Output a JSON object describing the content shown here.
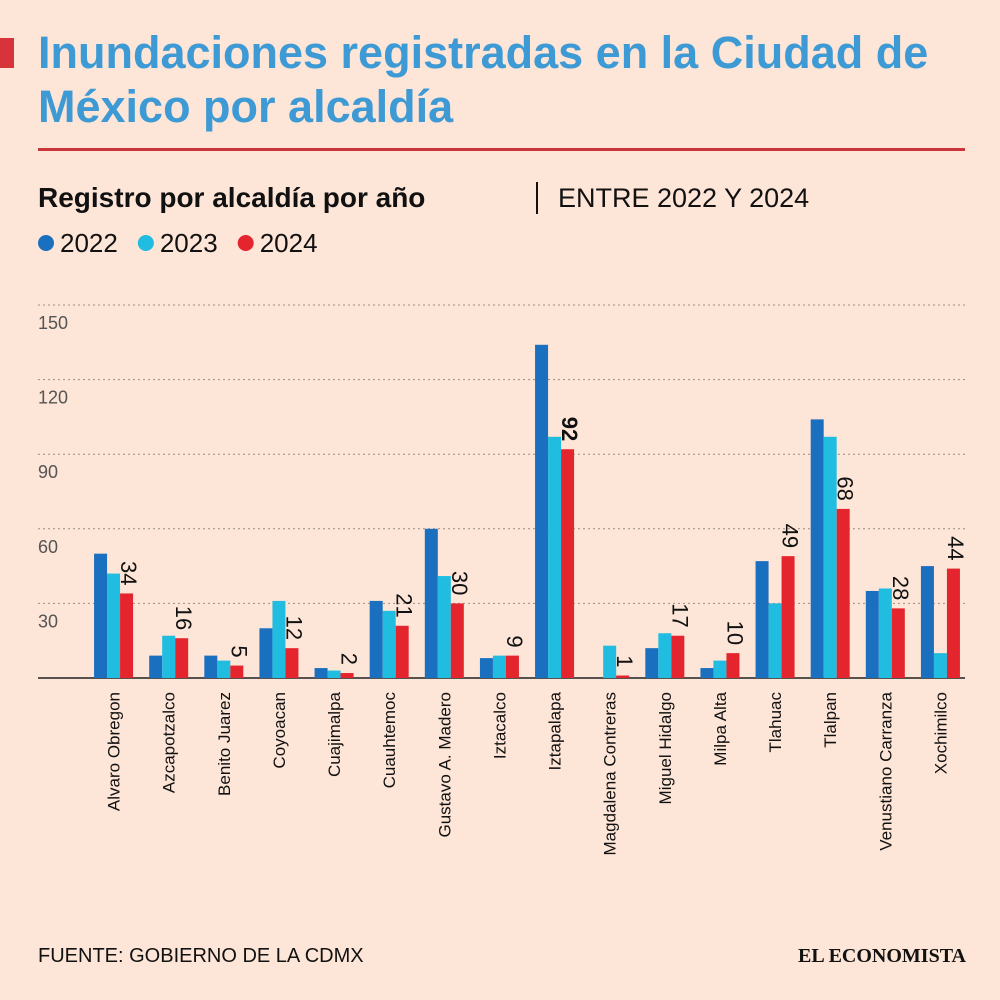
{
  "chart_data": {
    "type": "bar",
    "title": "Inundaciones registradas en la Ciudad de México por alcaldía",
    "subtitle": "Registro por alcaldía por año",
    "period": "ENTRE 2022 Y 2024",
    "source": "FUENTE: GOBIERNO DE LA CDMX",
    "publisher": "EL ECONOMISTA",
    "categories": [
      "Alvaro Obregon",
      "Azcapotzalco",
      "Benito Juarez",
      "Coyoacan",
      "Cuajimalpa",
      "Cuauhtemoc",
      "Gustavo A. Madero",
      "Iztacalco",
      "Iztapalapa",
      "Magdalena Contreras",
      "Miguel Hidalgo",
      "Milpa Alta",
      "Tlahuac",
      "Tlalpan",
      "Venustiano Carranza",
      "Xochimilco"
    ],
    "series": [
      {
        "name": "2022",
        "color": "#1b6fbf",
        "values": [
          50,
          9,
          9,
          20,
          4,
          31,
          60,
          8,
          134,
          null,
          12,
          4,
          47,
          104,
          35,
          45
        ]
      },
      {
        "name": "2023",
        "color": "#20bde0",
        "values": [
          42,
          17,
          7,
          31,
          3,
          27,
          41,
          9,
          97,
          13,
          18,
          7,
          30,
          97,
          36,
          10
        ]
      },
      {
        "name": "2024",
        "color": "#e5252d",
        "values": [
          34,
          16,
          5,
          12,
          2,
          21,
          30,
          9,
          92,
          1,
          17,
          10,
          49,
          68,
          28,
          44
        ],
        "data_labels": true
      }
    ],
    "ylim": [
      0,
      150
    ],
    "yticks": [
      30,
      60,
      90,
      120,
      150
    ],
    "grid": true,
    "legend": "top-left"
  }
}
